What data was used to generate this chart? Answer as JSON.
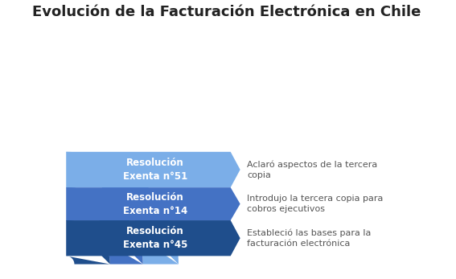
{
  "title": "Evolución de la Facturación Electrónica en Chile",
  "background_color": "#ffffff",
  "arcs": [
    {
      "label_line1": "Resolución",
      "label_line2": "Exenta n°51",
      "description": "Aclaró aspectos de la tercera\ncopia",
      "color": "#7baee8",
      "inner_r": 0.56,
      "outer_r": 0.82
    },
    {
      "label_line1": "Resolución",
      "label_line2": "Exenta n°14",
      "description": "Introdujo la tercera copia para\ncobros ejecutivos",
      "color": "#4472c4",
      "inner_r": 0.32,
      "outer_r": 0.56
    },
    {
      "label_line1": "Resolución",
      "label_line2": "Exenta n°45",
      "description": "Estableció las bases para la\nfacturación electrónica",
      "color": "#1f4e8c",
      "inner_r": 0.06,
      "outer_r": 0.32
    }
  ],
  "title_fontsize": 13,
  "label_fontsize": 8.5,
  "desc_fontsize": 8,
  "text_color_labels": "#ffffff",
  "text_color_desc": "#555555"
}
